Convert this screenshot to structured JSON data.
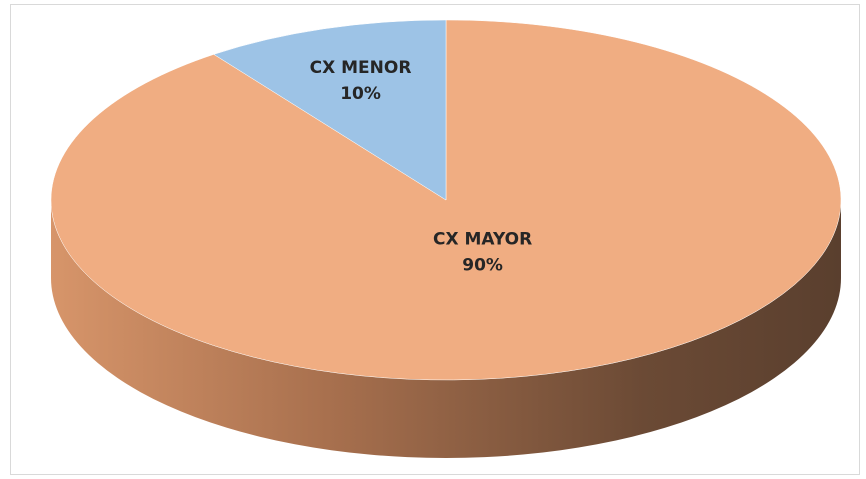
{
  "chart_data": {
    "type": "pie",
    "categories": [
      "CX MAYOR",
      "CX MENOR"
    ],
    "values": [
      90,
      10
    ],
    "value_labels": [
      "90%",
      "10%"
    ],
    "colors": [
      "#f0ad82",
      "#9dc3e6"
    ]
  }
}
